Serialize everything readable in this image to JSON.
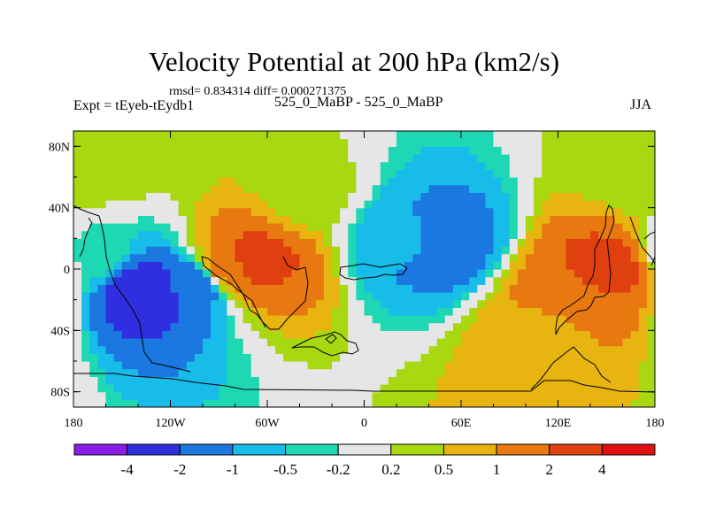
{
  "chart_data": {
    "type": "contour",
    "title": "Velocity Potential at 200 hPa (km2/s)",
    "stats": "rmsd= 0.834314 diff= 0.000271375",
    "experiment": "Expt = tEyeb-tEydb1",
    "cases": "525_0_MaBP - 525_0_MaBP",
    "season": "JJA",
    "xlim": [
      -180,
      180
    ],
    "ylim": [
      -90,
      90
    ],
    "x_ticks": [
      {
        "value": -180,
        "label": "180"
      },
      {
        "value": -120,
        "label": "120W"
      },
      {
        "value": -60,
        "label": "60W"
      },
      {
        "value": 0,
        "label": "0"
      },
      {
        "value": 60,
        "label": "60E"
      },
      {
        "value": 120,
        "label": "120E"
      },
      {
        "value": 180,
        "label": "180"
      }
    ],
    "y_ticks": [
      {
        "value": 80,
        "label": "80N"
      },
      {
        "value": 40,
        "label": "40N"
      },
      {
        "value": 0,
        "label": "0"
      },
      {
        "value": -40,
        "label": "40S"
      },
      {
        "value": -80,
        "label": "80S"
      }
    ],
    "levels": [
      -4,
      -2,
      -1,
      -0.5,
      -0.2,
      0.2,
      0.5,
      1,
      2,
      4
    ],
    "level_labels": [
      "-4",
      "-2",
      "-1",
      "-0.5",
      "-0.2",
      "0.2",
      "0.5",
      "1",
      "2",
      "4"
    ],
    "colors": [
      "#8b1ee6",
      "#2f2fe0",
      "#1a78e0",
      "#18bce8",
      "#1ed8b4",
      "#e6e6e6",
      "#a8d810",
      "#e8b410",
      "#e87810",
      "#e04010",
      "#e01010"
    ],
    "centers": [
      {
        "lon": -135,
        "lat": -14,
        "value": -3.0
      },
      {
        "lon": -105,
        "lat": -10,
        "value": -1.6
      },
      {
        "lon": -165,
        "lat": 10,
        "value": -0.3
      },
      {
        "lon": 45,
        "lat": 18,
        "value": -1.6
      },
      {
        "lon": 30,
        "lat": 20,
        "value": -0.8
      },
      {
        "lon": -70,
        "lat": 5,
        "value": 2.5
      },
      {
        "lon": -85,
        "lat": 0,
        "value": 1.2
      },
      {
        "lon": 150,
        "lat": 0,
        "value": 2.5
      },
      {
        "lon": 130,
        "lat": -20,
        "value": 1.5
      },
      {
        "lon": 115,
        "lat": -40,
        "value": 0.8
      },
      {
        "lon": 170,
        "lat": 65,
        "value": 0.3
      },
      {
        "lon": -160,
        "lat": 65,
        "value": 0.3
      },
      {
        "lon": -35,
        "lat": 50,
        "value": 0.3
      }
    ]
  },
  "colors": {
    "background": "#ffffff",
    "no_data": "#e6e6e6",
    "outline": "#000000"
  }
}
